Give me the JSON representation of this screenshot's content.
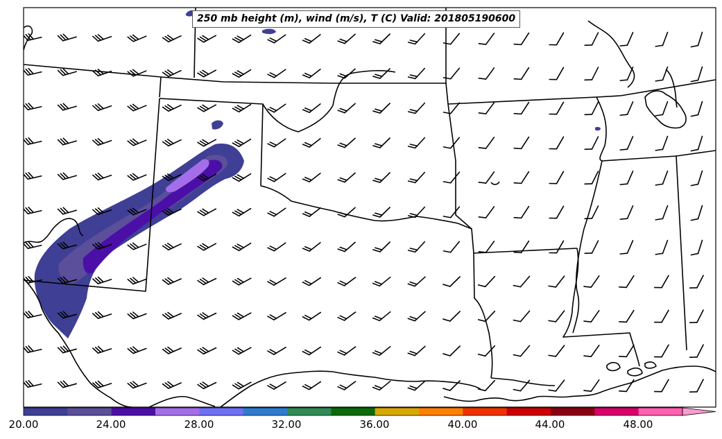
{
  "title": "250 mb height (m), wind (m/s), T (C) Valid: 201805190600",
  "colorbar": {
    "ticks": [
      "20.00",
      "24.00",
      "28.00",
      "32.00",
      "36.00",
      "40.00",
      "44.00",
      "48.00"
    ],
    "colors": [
      "#3f3f95",
      "#5b4f9c",
      "#4b0fa8",
      "#a36ee8",
      "#6f6ff6",
      "#2e7bd0",
      "#2e8b57",
      "#0a6a0a",
      "#d9a800",
      "#ff8000",
      "#ee3300",
      "#cc0000",
      "#8b0011",
      "#d9006a",
      "#ff60b0",
      "#ff9ad0"
    ]
  },
  "chart_data": {
    "type": "heatmap",
    "title": "250 mb height (m), wind (m/s), T (C) Valid: 201805190600",
    "variable": "wind speed (m/s)",
    "colorbar_range": [
      20,
      52
    ],
    "colorbar_ticks": [
      20,
      24,
      28,
      32,
      36,
      40,
      44,
      48
    ],
    "colorbar_step": 2,
    "features": [
      "state boundaries",
      "coastline",
      "wind barbs",
      "jet streak over southern Rockies / West Texas"
    ]
  }
}
